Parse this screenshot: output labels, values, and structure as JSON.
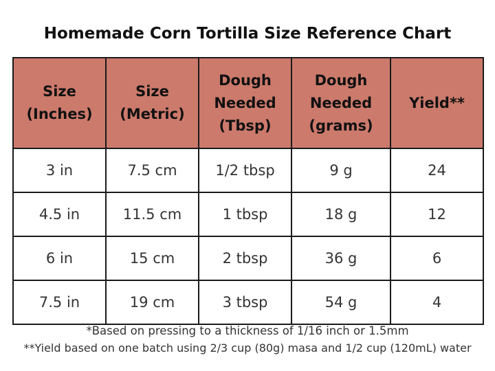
{
  "title": "Homemade Corn Tortilla Size Reference Chart",
  "colors": {
    "header_background": "#cc7a6c",
    "border": "#1a1a1a",
    "text": "#333333"
  },
  "table": {
    "headers": [
      [
        "Size",
        "(Inches)"
      ],
      [
        "Size",
        "(Metric)"
      ],
      [
        "Dough",
        "Needed",
        "(Tbsp)"
      ],
      [
        "Dough",
        "Needed",
        "(grams)"
      ],
      [
        "Yield**"
      ]
    ],
    "rows": [
      [
        "3 in",
        "7.5 cm",
        "1/2 tbsp",
        "9 g",
        "24"
      ],
      [
        "4.5 in",
        "11.5 cm",
        "1 tbsp",
        "18 g",
        "12"
      ],
      [
        "6 in",
        "15 cm",
        "2 tbsp",
        "36 g",
        "6"
      ],
      [
        "7.5 in",
        "19 cm",
        "3 tbsp",
        "54 g",
        "4"
      ]
    ]
  },
  "footnotes": {
    "note1": "*Based on pressing to a thickness of 1/16 inch or 1.5mm",
    "note2": "**Yield based on one batch using 2/3 cup (80g) masa and 1/2 cup (120mL) water"
  }
}
